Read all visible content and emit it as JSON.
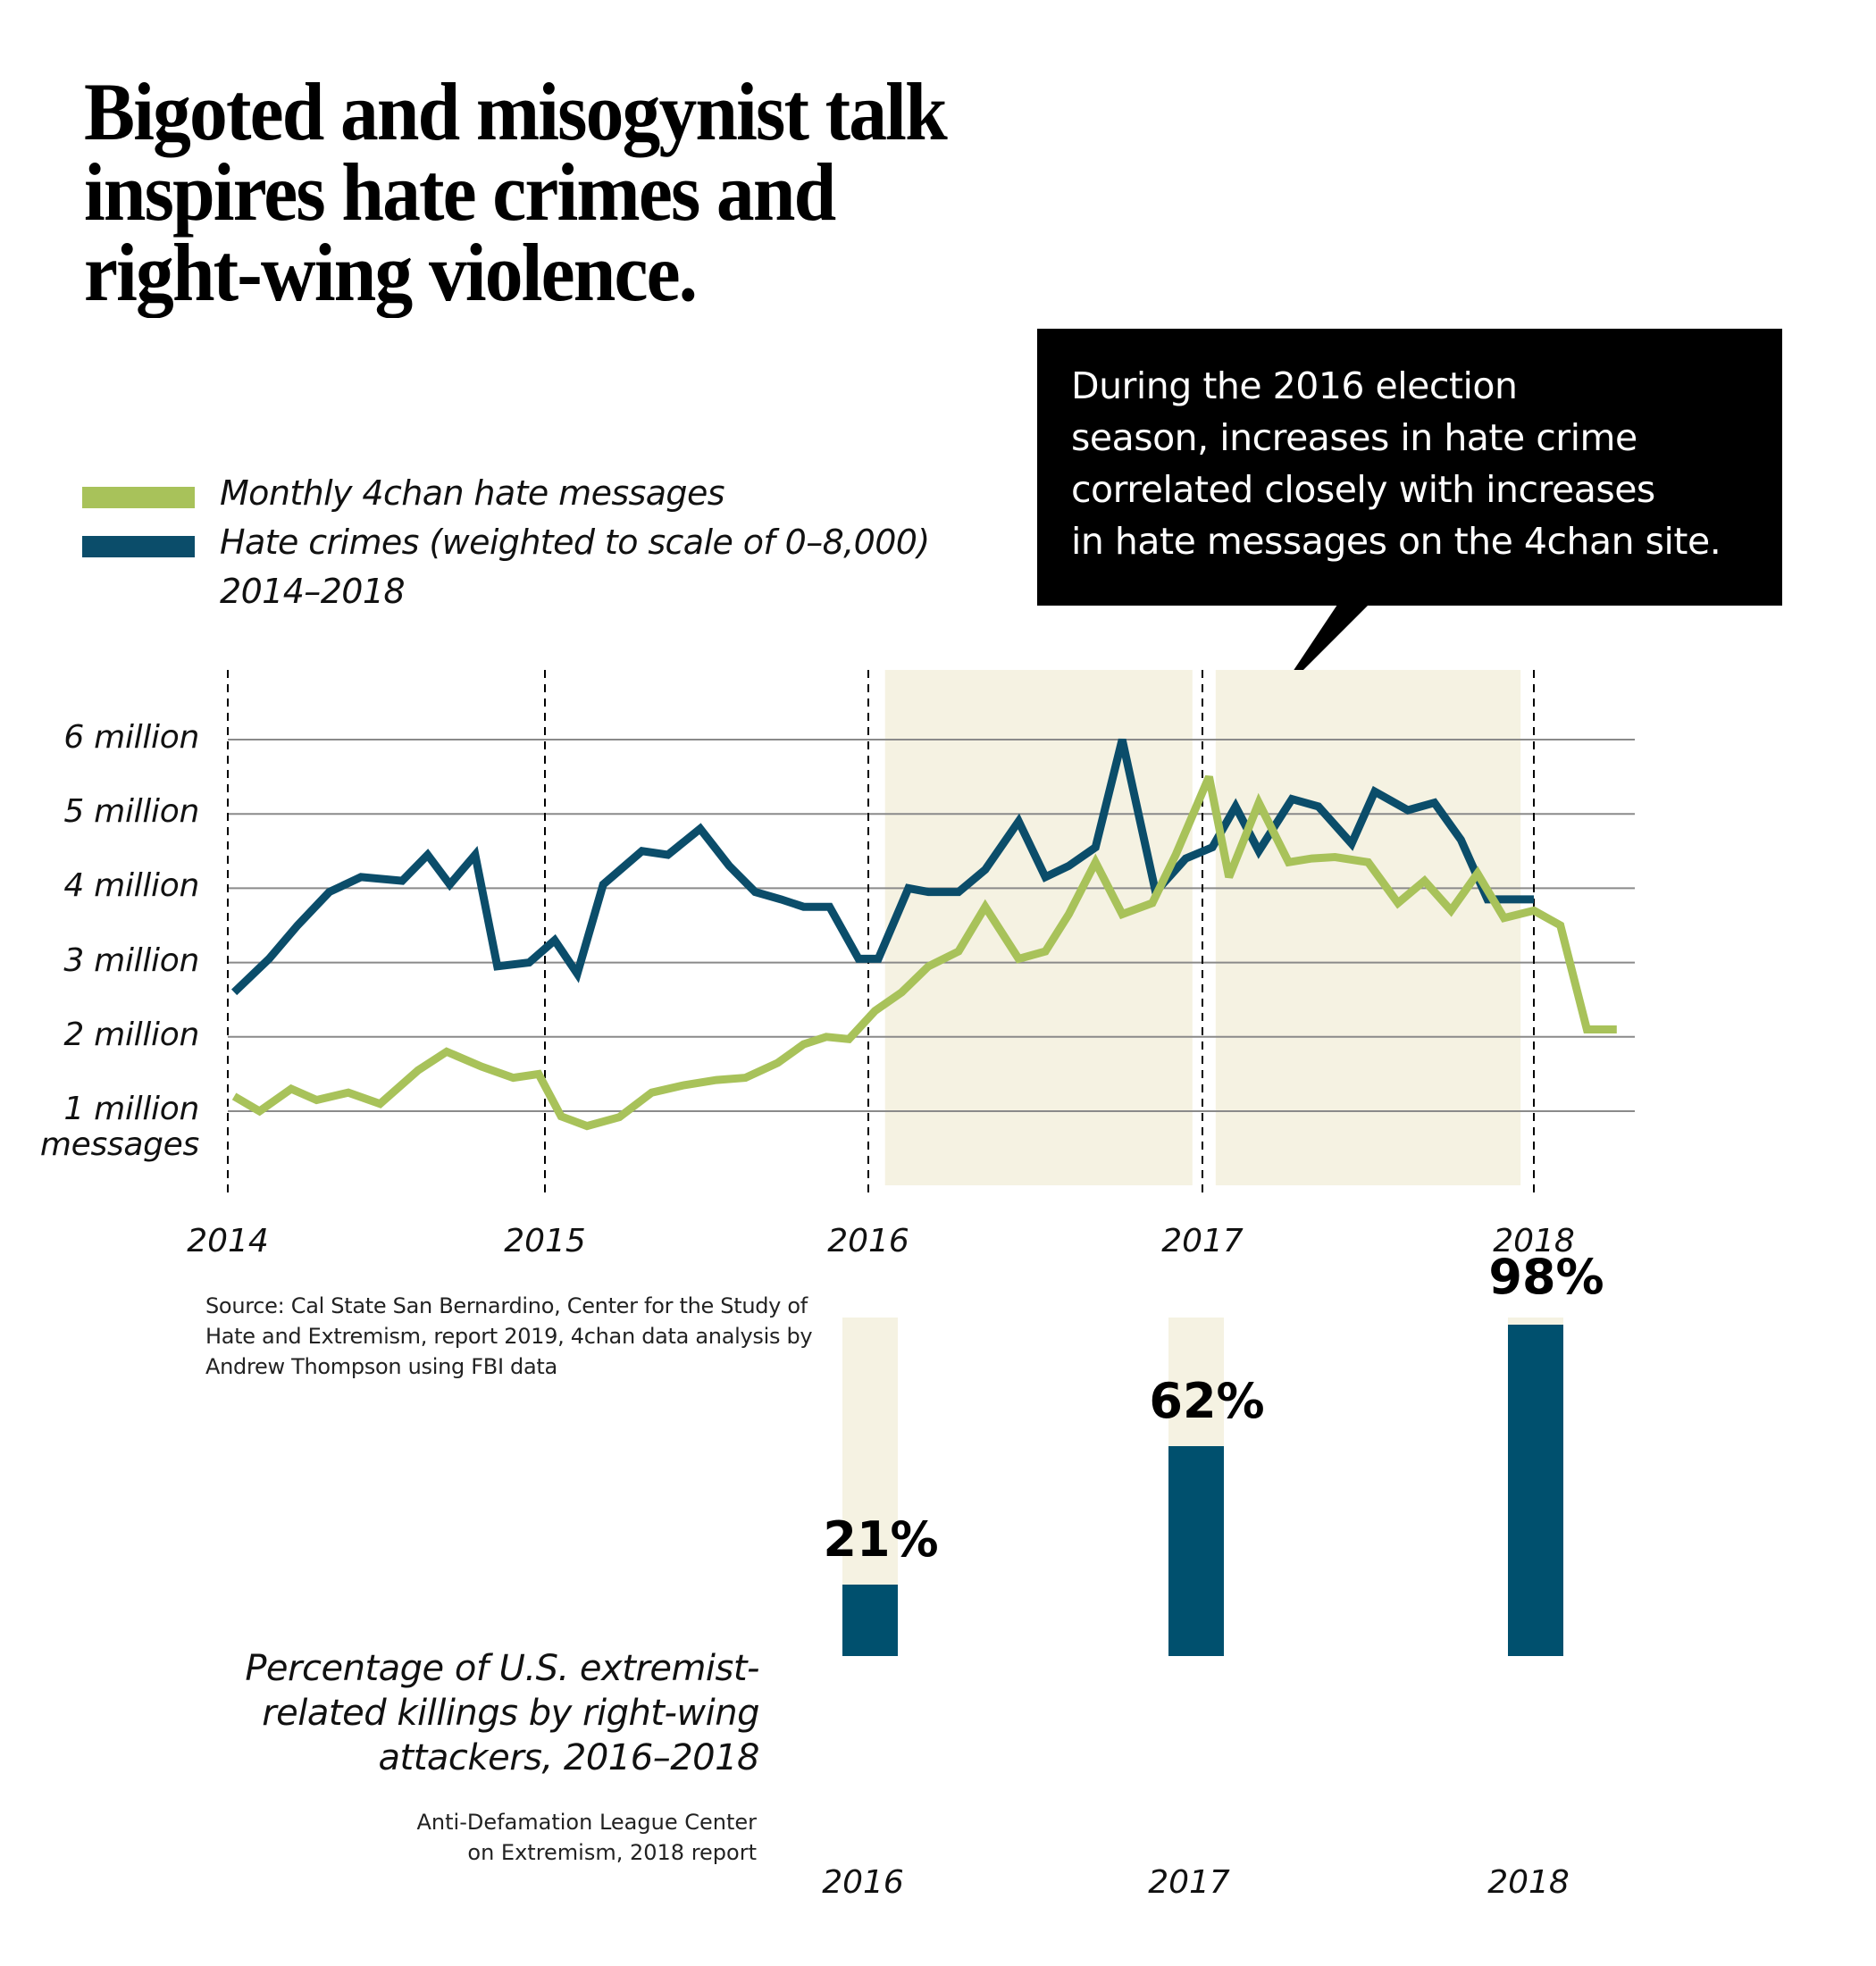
{
  "title": {
    "lines": [
      "Bigoted and misogynist talk",
      "inspires hate crimes and",
      "right-wing violence."
    ]
  },
  "callout": {
    "lines": [
      "During the 2016 election",
      "season, increases in hate crime",
      "correlated closely with increases",
      "in hate messages on the 4chan site."
    ]
  },
  "legend": {
    "items": [
      {
        "label": "Monthly 4chan hate messages",
        "color": "#a8c25a"
      },
      {
        "label": "Hate crimes (weighted to scale of 0–8,000)",
        "color": "#0b4d6a"
      }
    ],
    "period": "2014–2018"
  },
  "source_note": "Source: Cal State San Bernardino, Center for the Study of Hate and Extremism, report 2019, 4chan data analysis by Andrew Thompson using FBI data",
  "chart_data": [
    {
      "type": "line",
      "title": "Monthly 4chan hate messages and hate crimes, 2014–2018",
      "xlabel": "",
      "ylabel": "messages",
      "ytick_labels": [
        "1 million",
        "2 million",
        "3 million",
        "4 million",
        "5 million",
        "6 million"
      ],
      "ytick_values": [
        1,
        2,
        3,
        4,
        5,
        6
      ],
      "y_unit_label": "messages",
      "ylim": [
        0,
        6.5
      ],
      "xtick_labels": [
        "2014",
        "2015",
        "2016",
        "2017",
        "2018"
      ],
      "xtick_values": [
        2014,
        2015,
        2016,
        2017,
        2018
      ],
      "xlim": [
        2014,
        2018.45
      ],
      "grid": "horizontal",
      "year_markers": "dashed vertical lines",
      "shaded_periods": [
        {
          "start": 2016.05,
          "end": 2016.97
        },
        {
          "start": 2017.04,
          "end": 2017.96
        }
      ],
      "series": [
        {
          "name": "Monthly 4chan hate messages",
          "color": "#a8c25a",
          "unit": "million messages",
          "x": [
            2014.02,
            2014.1,
            2014.2,
            2014.28,
            2014.38,
            2014.48,
            2014.6,
            2014.69,
            2014.8,
            2014.9,
            2014.98,
            2015.05,
            2015.13,
            2015.23,
            2015.33,
            2015.43,
            2015.53,
            2015.62,
            2015.72,
            2015.8,
            2015.87,
            2015.94,
            2016.02,
            2016.1,
            2016.18,
            2016.27,
            2016.35,
            2016.45,
            2016.53,
            2016.6,
            2016.68,
            2016.76,
            2016.85,
            2016.92,
            2017.02,
            2017.08,
            2017.17,
            2017.26,
            2017.33,
            2017.4,
            2017.5,
            2017.59,
            2017.67,
            2017.75,
            2017.83,
            2017.91,
            2018.0,
            2018.08,
            2018.16,
            2018.25
          ],
          "values": [
            1.2,
            1.0,
            1.3,
            1.15,
            1.25,
            1.1,
            1.55,
            1.8,
            1.6,
            1.45,
            1.5,
            0.93,
            0.8,
            0.92,
            1.25,
            1.35,
            1.42,
            1.45,
            1.65,
            1.9,
            2.0,
            1.97,
            2.35,
            2.6,
            2.95,
            3.15,
            3.75,
            3.05,
            3.15,
            3.65,
            4.35,
            3.65,
            3.8,
            4.45,
            5.5,
            4.15,
            5.15,
            4.35,
            4.4,
            4.42,
            4.35,
            3.8,
            4.1,
            3.7,
            4.2,
            3.6,
            3.7,
            3.5,
            2.1,
            2.1
          ]
        },
        {
          "name": "Hate crimes (weighted to scale of 0–8,000)",
          "color": "#0b4d6a",
          "unit": "scaled",
          "x": [
            2014.02,
            2014.13,
            2014.22,
            2014.32,
            2014.42,
            2014.55,
            2014.63,
            2014.7,
            2014.78,
            2014.85,
            2014.95,
            2015.03,
            2015.1,
            2015.18,
            2015.3,
            2015.38,
            2015.48,
            2015.57,
            2015.65,
            2015.73,
            2015.8,
            2015.88,
            2015.97,
            2016.03,
            2016.12,
            2016.18,
            2016.27,
            2016.35,
            2016.45,
            2016.53,
            2016.6,
            2016.68,
            2016.76,
            2016.86,
            2016.95,
            2017.03,
            2017.1,
            2017.17,
            2017.27,
            2017.35,
            2017.45,
            2017.52,
            2017.62,
            2017.7,
            2017.78,
            2017.86,
            2017.94,
            2018.0
          ],
          "values": [
            2.6,
            3.05,
            3.5,
            3.95,
            4.15,
            4.1,
            4.45,
            4.05,
            4.45,
            2.95,
            3.0,
            3.3,
            2.85,
            4.05,
            4.5,
            4.45,
            4.8,
            4.3,
            3.95,
            3.85,
            3.75,
            3.75,
            3.05,
            3.05,
            4.0,
            3.95,
            3.95,
            4.25,
            4.9,
            4.15,
            4.3,
            4.55,
            6.0,
            3.95,
            4.4,
            4.55,
            5.1,
            4.5,
            5.2,
            5.1,
            4.6,
            5.3,
            5.05,
            5.15,
            4.65,
            3.85,
            3.85,
            3.85
          ]
        }
      ]
    },
    {
      "type": "bar",
      "title": "Percentage of U.S. extremist-related killings by right-wing attackers, 2016–2018",
      "categories": [
        "2016",
        "2017",
        "2018"
      ],
      "values": [
        21,
        62,
        98
      ],
      "value_labels": [
        "21%",
        "62%",
        "98%"
      ],
      "ylim": [
        0,
        100
      ],
      "fill_color": "#00506e",
      "track_color": "#f5f2e2",
      "source": "Anti-Defamation League Center on Extremism, 2018 report"
    }
  ],
  "bar_section": {
    "title_lines": [
      "Percentage of U.S. extremist-",
      "related killings by right-wing",
      "attackers, 2016–2018"
    ],
    "source_lines": [
      "Anti-Defamation League Center",
      "on Extremism, 2018 report"
    ]
  }
}
